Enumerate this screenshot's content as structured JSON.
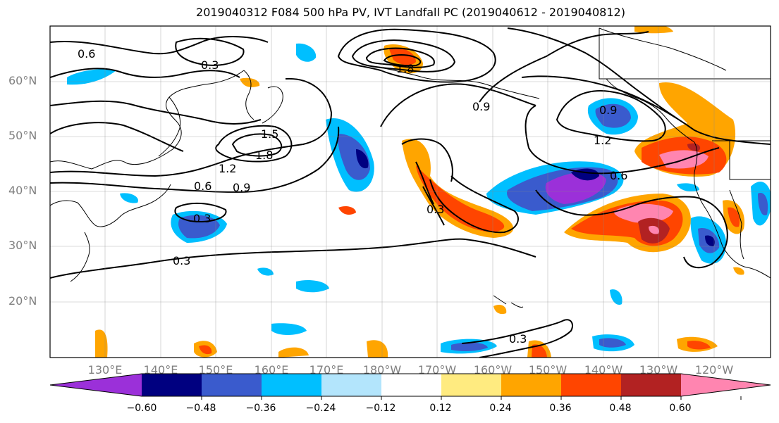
{
  "title": "2019040312 F084 500 hPa PV, IVT Landfall PC (2019040612 - 2019040812)",
  "map": {
    "lat_labels": [
      "60°N",
      "50°N",
      "40°N",
      "30°N",
      "20°N"
    ],
    "lon_labels": [
      "130°E",
      "140°E",
      "150°E",
      "160°E",
      "170°E",
      "180°W",
      "170°W",
      "160°W",
      "150°W",
      "140°W",
      "130°W",
      "120°W"
    ],
    "contour_labels": [
      "0.6",
      "0.3",
      "1.8",
      "0.9",
      "0.9",
      "1.2",
      "1.5",
      "1.8",
      "1.2",
      "0.6",
      "0.9",
      "0.3",
      "0.6",
      "0.3",
      "0.3",
      "0.3"
    ]
  },
  "colorbar": {
    "ticks": [
      "−0.60",
      "−0.48",
      "−0.36",
      "−0.24",
      "−0.12",
      "0.12",
      "0.24",
      "0.36",
      "0.48",
      "0.60"
    ],
    "colors": [
      "#9b30d9",
      "#000080",
      "#3a5bcd",
      "#00bfff",
      "#b3e5fc",
      "#ffffff",
      "#ffeb80",
      "#ffa500",
      "#ff4500",
      "#b22222",
      "#ff85b0"
    ]
  }
}
